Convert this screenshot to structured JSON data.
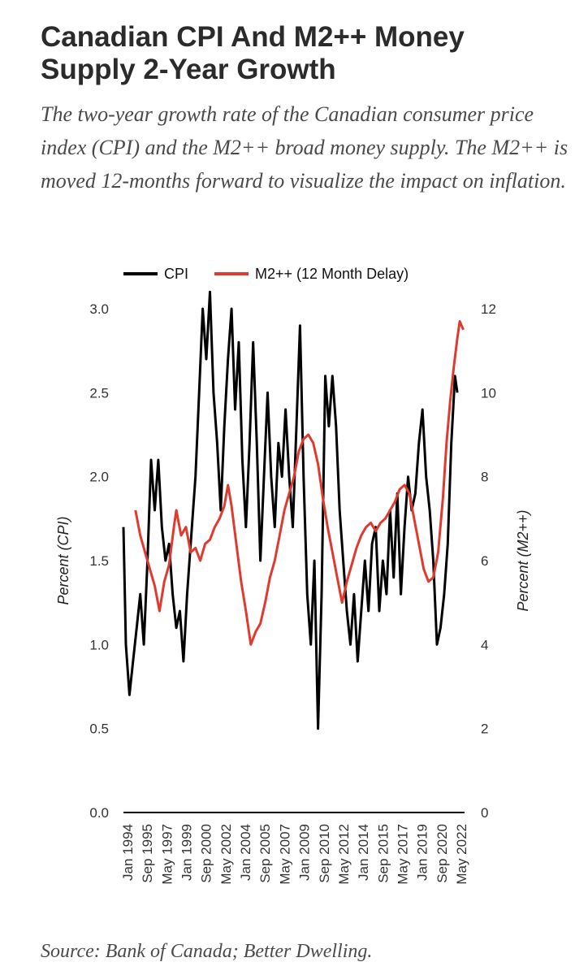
{
  "header": {
    "title": "Canadian CPI And M2++ Money Supply 2-Year Growth",
    "subtitle": "The two-year growth rate of the Canadian consumer price index (CPI) and the M2++ broad money supply. The M2++ is moved 12-months forward to visualize the impact on inflation."
  },
  "footer": {
    "source": "Source: Bank of Canada; Better Dwelling."
  },
  "colors": {
    "cpi": "#000000",
    "m2": "#e03a2f",
    "axis": "#000000"
  },
  "chart_data": {
    "type": "line",
    "legend_position": "top",
    "grid": false,
    "xlabel": "",
    "ylabel_left": "Percent (CPI)",
    "ylabel_right": "Percent (M2++)",
    "ylim_left": [
      0,
      3.0
    ],
    "ylim_right": [
      0,
      12
    ],
    "yticks_left": [
      "0.0",
      "0.5",
      "1.0",
      "1.5",
      "2.0",
      "2.5",
      "3.0"
    ],
    "yticks_right": [
      "0",
      "2",
      "4",
      "6",
      "8",
      "10",
      "12"
    ],
    "x_tick_labels": [
      "Jan 1994",
      "Sep 1995",
      "May 1997",
      "Jan 1999",
      "Sep 2000",
      "May 2002",
      "Jan 2004",
      "Sep 2005",
      "May 2007",
      "Jan 2009",
      "Sep 2010",
      "May 2012",
      "Jan 2014",
      "Sep 2015",
      "May 2017",
      "Jan 2019",
      "Sep 2020",
      "May 2022"
    ],
    "series": [
      {
        "name": "CPI",
        "axis": "left",
        "points": [
          [
            1994.0,
            1.7
          ],
          [
            1994.2,
            1.0
          ],
          [
            1994.5,
            0.7
          ],
          [
            1994.8,
            0.9
          ],
          [
            1995.1,
            1.1
          ],
          [
            1995.4,
            1.3
          ],
          [
            1995.7,
            1.0
          ],
          [
            1996.0,
            1.5
          ],
          [
            1996.3,
            2.1
          ],
          [
            1996.6,
            1.8
          ],
          [
            1996.9,
            2.1
          ],
          [
            1997.2,
            1.7
          ],
          [
            1997.5,
            1.5
          ],
          [
            1997.8,
            1.6
          ],
          [
            1998.1,
            1.3
          ],
          [
            1998.4,
            1.1
          ],
          [
            1998.7,
            1.2
          ],
          [
            1999.0,
            0.9
          ],
          [
            1999.3,
            1.3
          ],
          [
            1999.6,
            1.6
          ],
          [
            2000.0,
            2.0
          ],
          [
            2000.3,
            2.5
          ],
          [
            2000.6,
            3.0
          ],
          [
            2000.9,
            2.7
          ],
          [
            2001.2,
            3.1
          ],
          [
            2001.5,
            2.5
          ],
          [
            2001.8,
            2.2
          ],
          [
            2002.1,
            1.8
          ],
          [
            2002.4,
            2.3
          ],
          [
            2002.7,
            2.7
          ],
          [
            2003.0,
            3.0
          ],
          [
            2003.3,
            2.4
          ],
          [
            2003.6,
            2.8
          ],
          [
            2003.9,
            2.1
          ],
          [
            2004.2,
            1.7
          ],
          [
            2004.5,
            2.2
          ],
          [
            2004.8,
            2.8
          ],
          [
            2005.1,
            2.2
          ],
          [
            2005.4,
            1.5
          ],
          [
            2005.7,
            2.0
          ],
          [
            2006.0,
            2.5
          ],
          [
            2006.3,
            2.0
          ],
          [
            2006.6,
            1.7
          ],
          [
            2006.9,
            2.2
          ],
          [
            2007.2,
            2.0
          ],
          [
            2007.5,
            2.4
          ],
          [
            2007.8,
            2.0
          ],
          [
            2008.1,
            1.7
          ],
          [
            2008.4,
            2.3
          ],
          [
            2008.7,
            2.9
          ],
          [
            2009.0,
            2.0
          ],
          [
            2009.3,
            1.3
          ],
          [
            2009.6,
            1.0
          ],
          [
            2009.9,
            1.5
          ],
          [
            2010.2,
            0.5
          ],
          [
            2010.5,
            1.3
          ],
          [
            2010.8,
            2.6
          ],
          [
            2011.1,
            2.3
          ],
          [
            2011.4,
            2.6
          ],
          [
            2011.7,
            2.3
          ],
          [
            2012.0,
            1.8
          ],
          [
            2012.3,
            1.5
          ],
          [
            2012.6,
            1.2
          ],
          [
            2012.9,
            1.0
          ],
          [
            2013.2,
            1.3
          ],
          [
            2013.5,
            0.9
          ],
          [
            2013.8,
            1.2
          ],
          [
            2014.1,
            1.5
          ],
          [
            2014.4,
            1.2
          ],
          [
            2014.7,
            1.6
          ],
          [
            2015.0,
            1.7
          ],
          [
            2015.3,
            1.2
          ],
          [
            2015.6,
            1.5
          ],
          [
            2015.9,
            1.3
          ],
          [
            2016.2,
            1.8
          ],
          [
            2016.5,
            1.4
          ],
          [
            2016.8,
            1.9
          ],
          [
            2017.1,
            1.3
          ],
          [
            2017.4,
            1.7
          ],
          [
            2017.7,
            2.0
          ],
          [
            2018.0,
            1.8
          ],
          [
            2018.3,
            1.9
          ],
          [
            2018.6,
            2.2
          ],
          [
            2018.9,
            2.4
          ],
          [
            2019.2,
            2.0
          ],
          [
            2019.5,
            1.8
          ],
          [
            2019.8,
            1.5
          ],
          [
            2020.1,
            1.0
          ],
          [
            2020.4,
            1.1
          ],
          [
            2020.7,
            1.3
          ],
          [
            2021.0,
            1.6
          ],
          [
            2021.3,
            2.2
          ],
          [
            2021.6,
            2.6
          ],
          [
            2021.8,
            2.5
          ]
        ]
      },
      {
        "name": "M2++ (12 Month Delay)",
        "axis": "right",
        "points": [
          [
            1995.0,
            7.2
          ],
          [
            1995.4,
            6.6
          ],
          [
            1995.8,
            6.2
          ],
          [
            1996.2,
            5.8
          ],
          [
            1996.6,
            5.4
          ],
          [
            1997.0,
            4.8
          ],
          [
            1997.4,
            5.5
          ],
          [
            1997.8,
            5.9
          ],
          [
            1998.2,
            6.8
          ],
          [
            1998.4,
            7.2
          ],
          [
            1998.8,
            6.6
          ],
          [
            1999.2,
            6.8
          ],
          [
            1999.6,
            6.2
          ],
          [
            2000.0,
            6.3
          ],
          [
            2000.4,
            6.0
          ],
          [
            2000.8,
            6.4
          ],
          [
            2001.2,
            6.5
          ],
          [
            2001.6,
            6.8
          ],
          [
            2002.0,
            7.0
          ],
          [
            2002.4,
            7.3
          ],
          [
            2002.7,
            7.8
          ],
          [
            2003.0,
            7.3
          ],
          [
            2003.4,
            6.4
          ],
          [
            2003.8,
            5.5
          ],
          [
            2004.2,
            4.8
          ],
          [
            2004.6,
            4.0
          ],
          [
            2005.0,
            4.3
          ],
          [
            2005.4,
            4.5
          ],
          [
            2005.8,
            5.0
          ],
          [
            2006.2,
            5.6
          ],
          [
            2006.6,
            6.0
          ],
          [
            2007.0,
            6.6
          ],
          [
            2007.4,
            7.2
          ],
          [
            2007.8,
            7.6
          ],
          [
            2008.2,
            8.0
          ],
          [
            2008.6,
            8.6
          ],
          [
            2009.0,
            8.9
          ],
          [
            2009.4,
            9.0
          ],
          [
            2009.8,
            8.8
          ],
          [
            2010.2,
            8.3
          ],
          [
            2010.6,
            7.5
          ],
          [
            2011.0,
            6.8
          ],
          [
            2011.4,
            6.2
          ],
          [
            2011.8,
            5.6
          ],
          [
            2012.2,
            5.0
          ],
          [
            2012.6,
            5.5
          ],
          [
            2013.0,
            5.9
          ],
          [
            2013.4,
            6.3
          ],
          [
            2013.8,
            6.6
          ],
          [
            2014.2,
            6.8
          ],
          [
            2014.6,
            6.9
          ],
          [
            2015.0,
            6.7
          ],
          [
            2015.4,
            6.9
          ],
          [
            2015.8,
            7.0
          ],
          [
            2016.2,
            7.2
          ],
          [
            2016.6,
            7.4
          ],
          [
            2017.0,
            7.7
          ],
          [
            2017.4,
            7.8
          ],
          [
            2017.8,
            7.6
          ],
          [
            2018.2,
            7.0
          ],
          [
            2018.6,
            6.4
          ],
          [
            2019.0,
            5.8
          ],
          [
            2019.4,
            5.5
          ],
          [
            2019.8,
            5.6
          ],
          [
            2020.2,
            6.2
          ],
          [
            2020.6,
            7.5
          ],
          [
            2020.9,
            8.8
          ],
          [
            2021.2,
            9.8
          ],
          [
            2021.5,
            10.6
          ],
          [
            2021.8,
            11.3
          ],
          [
            2022.0,
            11.7
          ],
          [
            2022.3,
            11.5
          ]
        ]
      }
    ]
  }
}
